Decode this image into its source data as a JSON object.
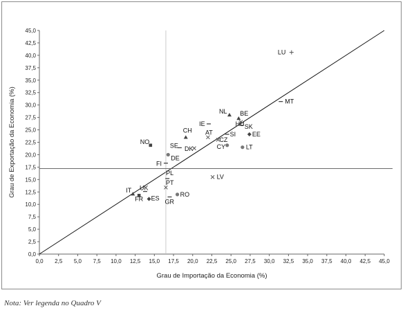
{
  "chart_data": {
    "type": "scatter",
    "xlabel": "Grau de Importação da Economia (%)",
    "ylabel": "Grau de Exportação da Economia (%)",
    "xlim": [
      0,
      45
    ],
    "ylim": [
      0,
      45
    ],
    "x_ticks": [
      "0,0",
      "2,5",
      "5,0",
      "7,5",
      "10,0",
      "12,5",
      "15,0",
      "17,5",
      "20,0",
      "22,5",
      "25,0",
      "27,5",
      "30,0",
      "32,5",
      "35,0",
      "37,5",
      "40,0",
      "42,5",
      "45,0"
    ],
    "y_ticks": [
      "0,0",
      "2,5",
      "5,0",
      "7,5",
      "10,0",
      "12,5",
      "15,0",
      "17,5",
      "20,0",
      "22,5",
      "25,0",
      "27,5",
      "30,0",
      "32,5",
      "35,0",
      "37,5",
      "40,0",
      "42,5",
      "45,0"
    ],
    "grid": false,
    "diagonal_line": {
      "from": [
        0,
        0
      ],
      "to": [
        45,
        45
      ]
    },
    "reference_lines": {
      "vertical_x": 16.5,
      "horizontal_y": 17.2
    },
    "points": [
      {
        "label": "LU",
        "x": 32.9,
        "y": 40.6,
        "marker": "plus"
      },
      {
        "label": "MT",
        "x": 31.5,
        "y": 30.7,
        "marker": "dash"
      },
      {
        "label": "NL",
        "x": 24.8,
        "y": 28.0,
        "marker": "triangle"
      },
      {
        "label": "BE",
        "x": 26.0,
        "y": 27.3,
        "marker": "triangle"
      },
      {
        "label": "HU",
        "x": 26.3,
        "y": 26.6,
        "marker": "x"
      },
      {
        "label": "SK",
        "x": 26.4,
        "y": 25.9,
        "marker": "dash"
      },
      {
        "label": "IE",
        "x": 22.1,
        "y": 26.2,
        "marker": "dash"
      },
      {
        "label": "CH",
        "x": 19.1,
        "y": 23.5,
        "marker": "triangle"
      },
      {
        "label": "AT",
        "x": 22.0,
        "y": 23.5,
        "marker": "x"
      },
      {
        "label": "CZ",
        "x": 23.3,
        "y": 23.0,
        "marker": "x"
      },
      {
        "label": "SI",
        "x": 24.5,
        "y": 24.1,
        "marker": "dash"
      },
      {
        "label": "EE",
        "x": 27.4,
        "y": 24.1,
        "marker": "diamond"
      },
      {
        "label": "NO",
        "x": 14.5,
        "y": 21.9,
        "marker": "square"
      },
      {
        "label": "SE",
        "x": 18.3,
        "y": 21.4,
        "marker": "dash"
      },
      {
        "label": "DK",
        "x": 20.2,
        "y": 21.3,
        "marker": "x"
      },
      {
        "label": "CY",
        "x": 24.5,
        "y": 21.9,
        "marker": "circle"
      },
      {
        "label": "LT",
        "x": 26.5,
        "y": 21.5,
        "marker": "circle"
      },
      {
        "label": "DE",
        "x": 16.8,
        "y": 20.0,
        "marker": "circle"
      },
      {
        "label": "FI",
        "x": 16.5,
        "y": 18.3,
        "marker": "dash"
      },
      {
        "label": "LV",
        "x": 22.6,
        "y": 15.5,
        "marker": "x"
      },
      {
        "label": "PL",
        "x": 16.7,
        "y": 15.2,
        "marker": "dash"
      },
      {
        "label": "PT",
        "x": 16.5,
        "y": 13.4,
        "marker": "x"
      },
      {
        "label": "UK",
        "x": 13.8,
        "y": 12.6,
        "marker": "dash"
      },
      {
        "label": "IT",
        "x": 12.2,
        "y": 12.1,
        "marker": "triangle"
      },
      {
        "label": "RO",
        "x": 18.0,
        "y": 12.0,
        "marker": "circle"
      },
      {
        "label": "FR",
        "x": 13.0,
        "y": 11.8,
        "marker": "square"
      },
      {
        "label": "ES",
        "x": 14.3,
        "y": 11.1,
        "marker": "diamond"
      },
      {
        "label": "GR",
        "x": 17.0,
        "y": 11.5,
        "marker": "dash"
      }
    ]
  },
  "note": "Nota: Ver legenda no Quadro V"
}
